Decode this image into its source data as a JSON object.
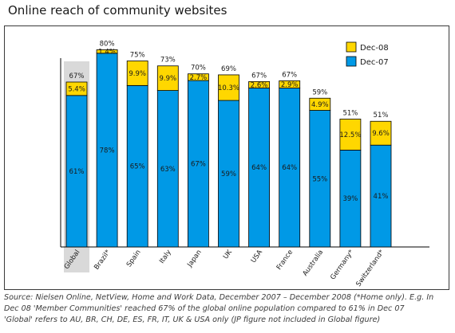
{
  "chart_data": {
    "type": "bar",
    "stacked": true,
    "title": "Online reach of community websites",
    "categories": [
      "Global",
      "Brazil*",
      "Spain",
      "Italy",
      "Japan",
      "UK",
      "USA",
      "France",
      "Australia",
      "Germany*",
      "Switzerland*"
    ],
    "highlight_category": "Global",
    "series": [
      {
        "name": "Dec-07",
        "color": "#0099e6",
        "values": [
          61,
          78,
          65,
          63,
          67,
          59,
          64,
          64,
          55,
          39,
          41
        ],
        "labels": [
          "61%",
          "78%",
          "65%",
          "63%",
          "67%",
          "59%",
          "64%",
          "64%",
          "55%",
          "39%",
          "41%"
        ]
      },
      {
        "name": "Dec-08",
        "color": "#ffd700",
        "values": [
          5.4,
          1.4,
          9.9,
          9.9,
          2.7,
          10.3,
          2.6,
          2.9,
          4.9,
          12.5,
          9.6
        ],
        "labels": [
          "5.4%",
          "1.4%",
          "9.9%",
          "9.9%",
          "2.7%",
          "10.3%",
          "2.6%",
          "2.9%",
          "4.9%",
          "12.5%",
          "9.6%"
        ]
      }
    ],
    "totals": [
      "67%",
      "80%",
      "75%",
      "73%",
      "70%",
      "69%",
      "67%",
      "67%",
      "59%",
      "51%",
      "51%"
    ],
    "ylim": [
      0,
      85
    ],
    "legend": {
      "placement": "top-right",
      "order": [
        "Dec-08",
        "Dec-07"
      ]
    },
    "grid": false,
    "source": [
      "Source: Nielsen Online, NetView, Home and Work Data, December 2007 – December 2008 (*Home only). E.g. In",
      "Dec 08  'Member Communities' reached 67% of the global online population compared to 61% in Dec 07",
      "'Global' refers to AU, BR, CH, DE, ES, FR, IT, UK & USA only (JP figure not included in Global figure)"
    ]
  }
}
